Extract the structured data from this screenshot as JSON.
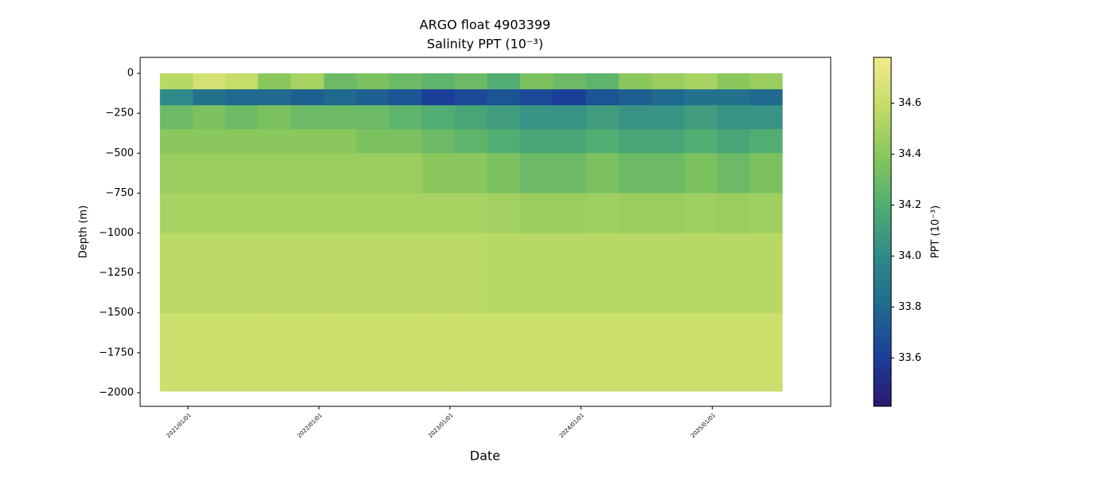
{
  "chart_data": {
    "type": "heatmap",
    "title": "ARGO float 4903399",
    "subtitle": "Salinity PPT (10⁻³)",
    "xlabel": "Date",
    "ylabel": "Depth (m)",
    "x": [
      "2020-10-15",
      "2021-01-15",
      "2021-04-15",
      "2021-07-15",
      "2021-10-15",
      "2022-01-15",
      "2022-04-15",
      "2022-07-15",
      "2022-10-15",
      "2023-01-15",
      "2023-04-15",
      "2023-07-15",
      "2023-10-15",
      "2024-01-15",
      "2024-04-15",
      "2024-07-15",
      "2024-10-15",
      "2025-01-15",
      "2025-04-15",
      "2025-07-15"
    ],
    "y": [
      0,
      -100,
      -200,
      -350,
      -500,
      -750,
      -1000,
      -1500,
      -1990
    ],
    "values": [
      [
        34.55,
        34.65,
        34.6,
        34.4,
        34.5,
        34.3,
        34.35,
        34.3,
        34.25,
        34.3,
        34.2,
        34.35,
        34.3,
        34.25,
        34.4,
        34.45,
        34.5,
        34.4,
        34.45
      ],
      [
        34.0,
        33.85,
        33.8,
        33.8,
        33.75,
        33.8,
        33.75,
        33.7,
        33.6,
        33.65,
        33.7,
        33.65,
        33.6,
        33.7,
        33.75,
        33.8,
        33.85,
        33.85,
        33.8
      ],
      [
        34.3,
        34.35,
        34.3,
        34.35,
        34.3,
        34.3,
        34.3,
        34.25,
        34.2,
        34.15,
        34.1,
        34.05,
        34.05,
        34.1,
        34.05,
        34.05,
        34.1,
        34.05,
        34.05
      ],
      [
        34.4,
        34.4,
        34.4,
        34.4,
        34.4,
        34.4,
        34.35,
        34.35,
        34.3,
        34.25,
        34.2,
        34.15,
        34.15,
        34.2,
        34.15,
        34.15,
        34.2,
        34.15,
        34.2
      ],
      [
        34.45,
        34.45,
        34.45,
        34.45,
        34.45,
        34.45,
        34.45,
        34.45,
        34.4,
        34.4,
        34.35,
        34.3,
        34.3,
        34.35,
        34.3,
        34.3,
        34.35,
        34.3,
        34.35
      ],
      [
        34.5,
        34.5,
        34.5,
        34.5,
        34.5,
        34.5,
        34.5,
        34.5,
        34.5,
        34.5,
        34.48,
        34.45,
        34.45,
        34.47,
        34.45,
        34.45,
        34.47,
        34.45,
        34.47
      ],
      [
        34.56,
        34.56,
        34.56,
        34.56,
        34.56,
        34.56,
        34.56,
        34.56,
        34.56,
        34.56,
        34.55,
        34.55,
        34.55,
        34.55,
        34.55,
        34.55,
        34.55,
        34.55,
        34.55
      ],
      [
        34.62,
        34.62,
        34.62,
        34.62,
        34.62,
        34.62,
        34.62,
        34.62,
        34.62,
        34.62,
        34.62,
        34.62,
        34.62,
        34.62,
        34.62,
        34.62,
        34.62,
        34.62,
        34.62
      ]
    ],
    "xlim": [
      "2020-08-21",
      "2025-11-27"
    ],
    "xticks": [
      {
        "value": "2021-01-01",
        "label": "2021/01/01"
      },
      {
        "value": "2022-01-01",
        "label": "2022/01/01"
      },
      {
        "value": "2023-01-01",
        "label": "2023/01/01"
      },
      {
        "value": "2024-01-01",
        "label": "2024/01/01"
      },
      {
        "value": "2025-01-01",
        "label": "2025/01/01"
      }
    ],
    "ylim": [
      -2085,
      100
    ],
    "yticks": [
      {
        "value": -2000,
        "label": "−2000"
      },
      {
        "value": -1750,
        "label": "−1750"
      },
      {
        "value": -1500,
        "label": "−1500"
      },
      {
        "value": -1250,
        "label": "−1250"
      },
      {
        "value": -1000,
        "label": "−1000"
      },
      {
        "value": -750,
        "label": "−750"
      },
      {
        "value": -500,
        "label": "−500"
      },
      {
        "value": -250,
        "label": "−250"
      },
      0
    ],
    "colorbar": {
      "label": "PPT (10⁻³)",
      "lim": [
        33.41,
        34.78
      ],
      "ticks": [
        33.6,
        33.8,
        {
          "value": 34,
          "label": "34.0"
        },
        34.2,
        34.4,
        34.6
      ],
      "colormap": [
        "#2a186c",
        "#1b3f9a",
        "#1f6a8e",
        "#2f8a8a",
        "#4fac72",
        "#86c65c",
        "#c2dc66",
        "#f5ea8e"
      ]
    }
  }
}
